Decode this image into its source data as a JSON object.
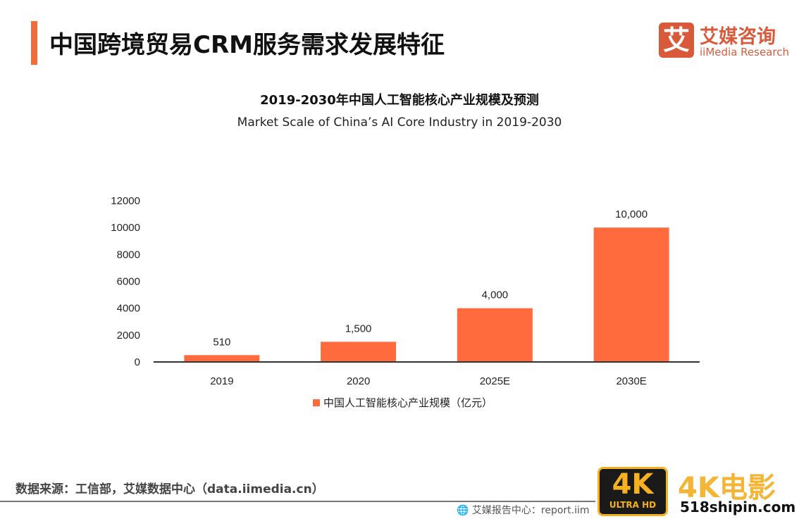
{
  "header": {
    "title": "中国跨境贸易CRM服务需求发展特征"
  },
  "logo": {
    "mark": "艾",
    "name_cn": "艾媒咨询",
    "name_en": "iiMedia Research"
  },
  "chart_data": {
    "type": "bar",
    "title": "2019-2030年中国人工智能核心产业规模及预测",
    "subtitle": "Market Scale of China’s AI Core Industry in 2019-2030",
    "categories": [
      "2019",
      "2020",
      "2025E",
      "2030E"
    ],
    "series": [
      {
        "name": "中国人工智能核心产业规模（亿元）",
        "values": [
          510,
          1500,
          4000,
          10000
        ],
        "labels": [
          "510",
          "1,500",
          "4,000",
          "10,000"
        ]
      }
    ],
    "ylim": [
      0,
      12000
    ],
    "yticks": [
      "0",
      "2000",
      "4000",
      "6000",
      "8000",
      "10000",
      "12000"
    ],
    "grid": false,
    "legend": "bottom",
    "bar_color": "#FF6B3D"
  },
  "footer": {
    "source": "数据来源：工信部，艾媒数据中心（data.iimedia.cn）",
    "report": "艾媒报告中心：report.iim"
  },
  "watermark": {
    "badge_big": "4K",
    "badge_small": "ULTRA HD",
    "name": "4K电影",
    "url": "518shipin.com"
  }
}
